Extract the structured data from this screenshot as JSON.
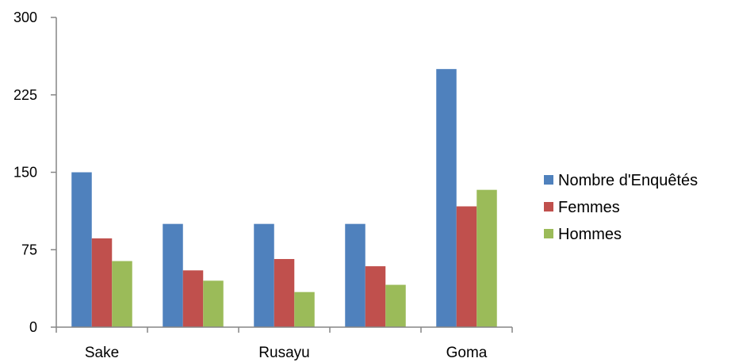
{
  "chart_data": {
    "type": "bar",
    "categories": [
      "Sake",
      "",
      "Rusayu",
      "",
      "Goma"
    ],
    "series": [
      {
        "name": "Nombre d'Enquêtés",
        "color": "#4F81BD",
        "values": [
          150,
          100,
          100,
          100,
          250
        ]
      },
      {
        "name": "Femmes",
        "color": "#C0504D",
        "values": [
          86,
          55,
          66,
          59,
          117
        ]
      },
      {
        "name": "Hommes",
        "color": "#9BBB59",
        "values": [
          64,
          45,
          34,
          41,
          133
        ]
      }
    ],
    "yticks": [
      0,
      75,
      150,
      225,
      300
    ],
    "ytick_labels": [
      "0",
      "75",
      "150",
      "225",
      "300"
    ],
    "ylim": [
      0,
      300
    ],
    "title": "",
    "xlabel": "",
    "ylabel": "",
    "grid": false,
    "legend_position": "right"
  }
}
